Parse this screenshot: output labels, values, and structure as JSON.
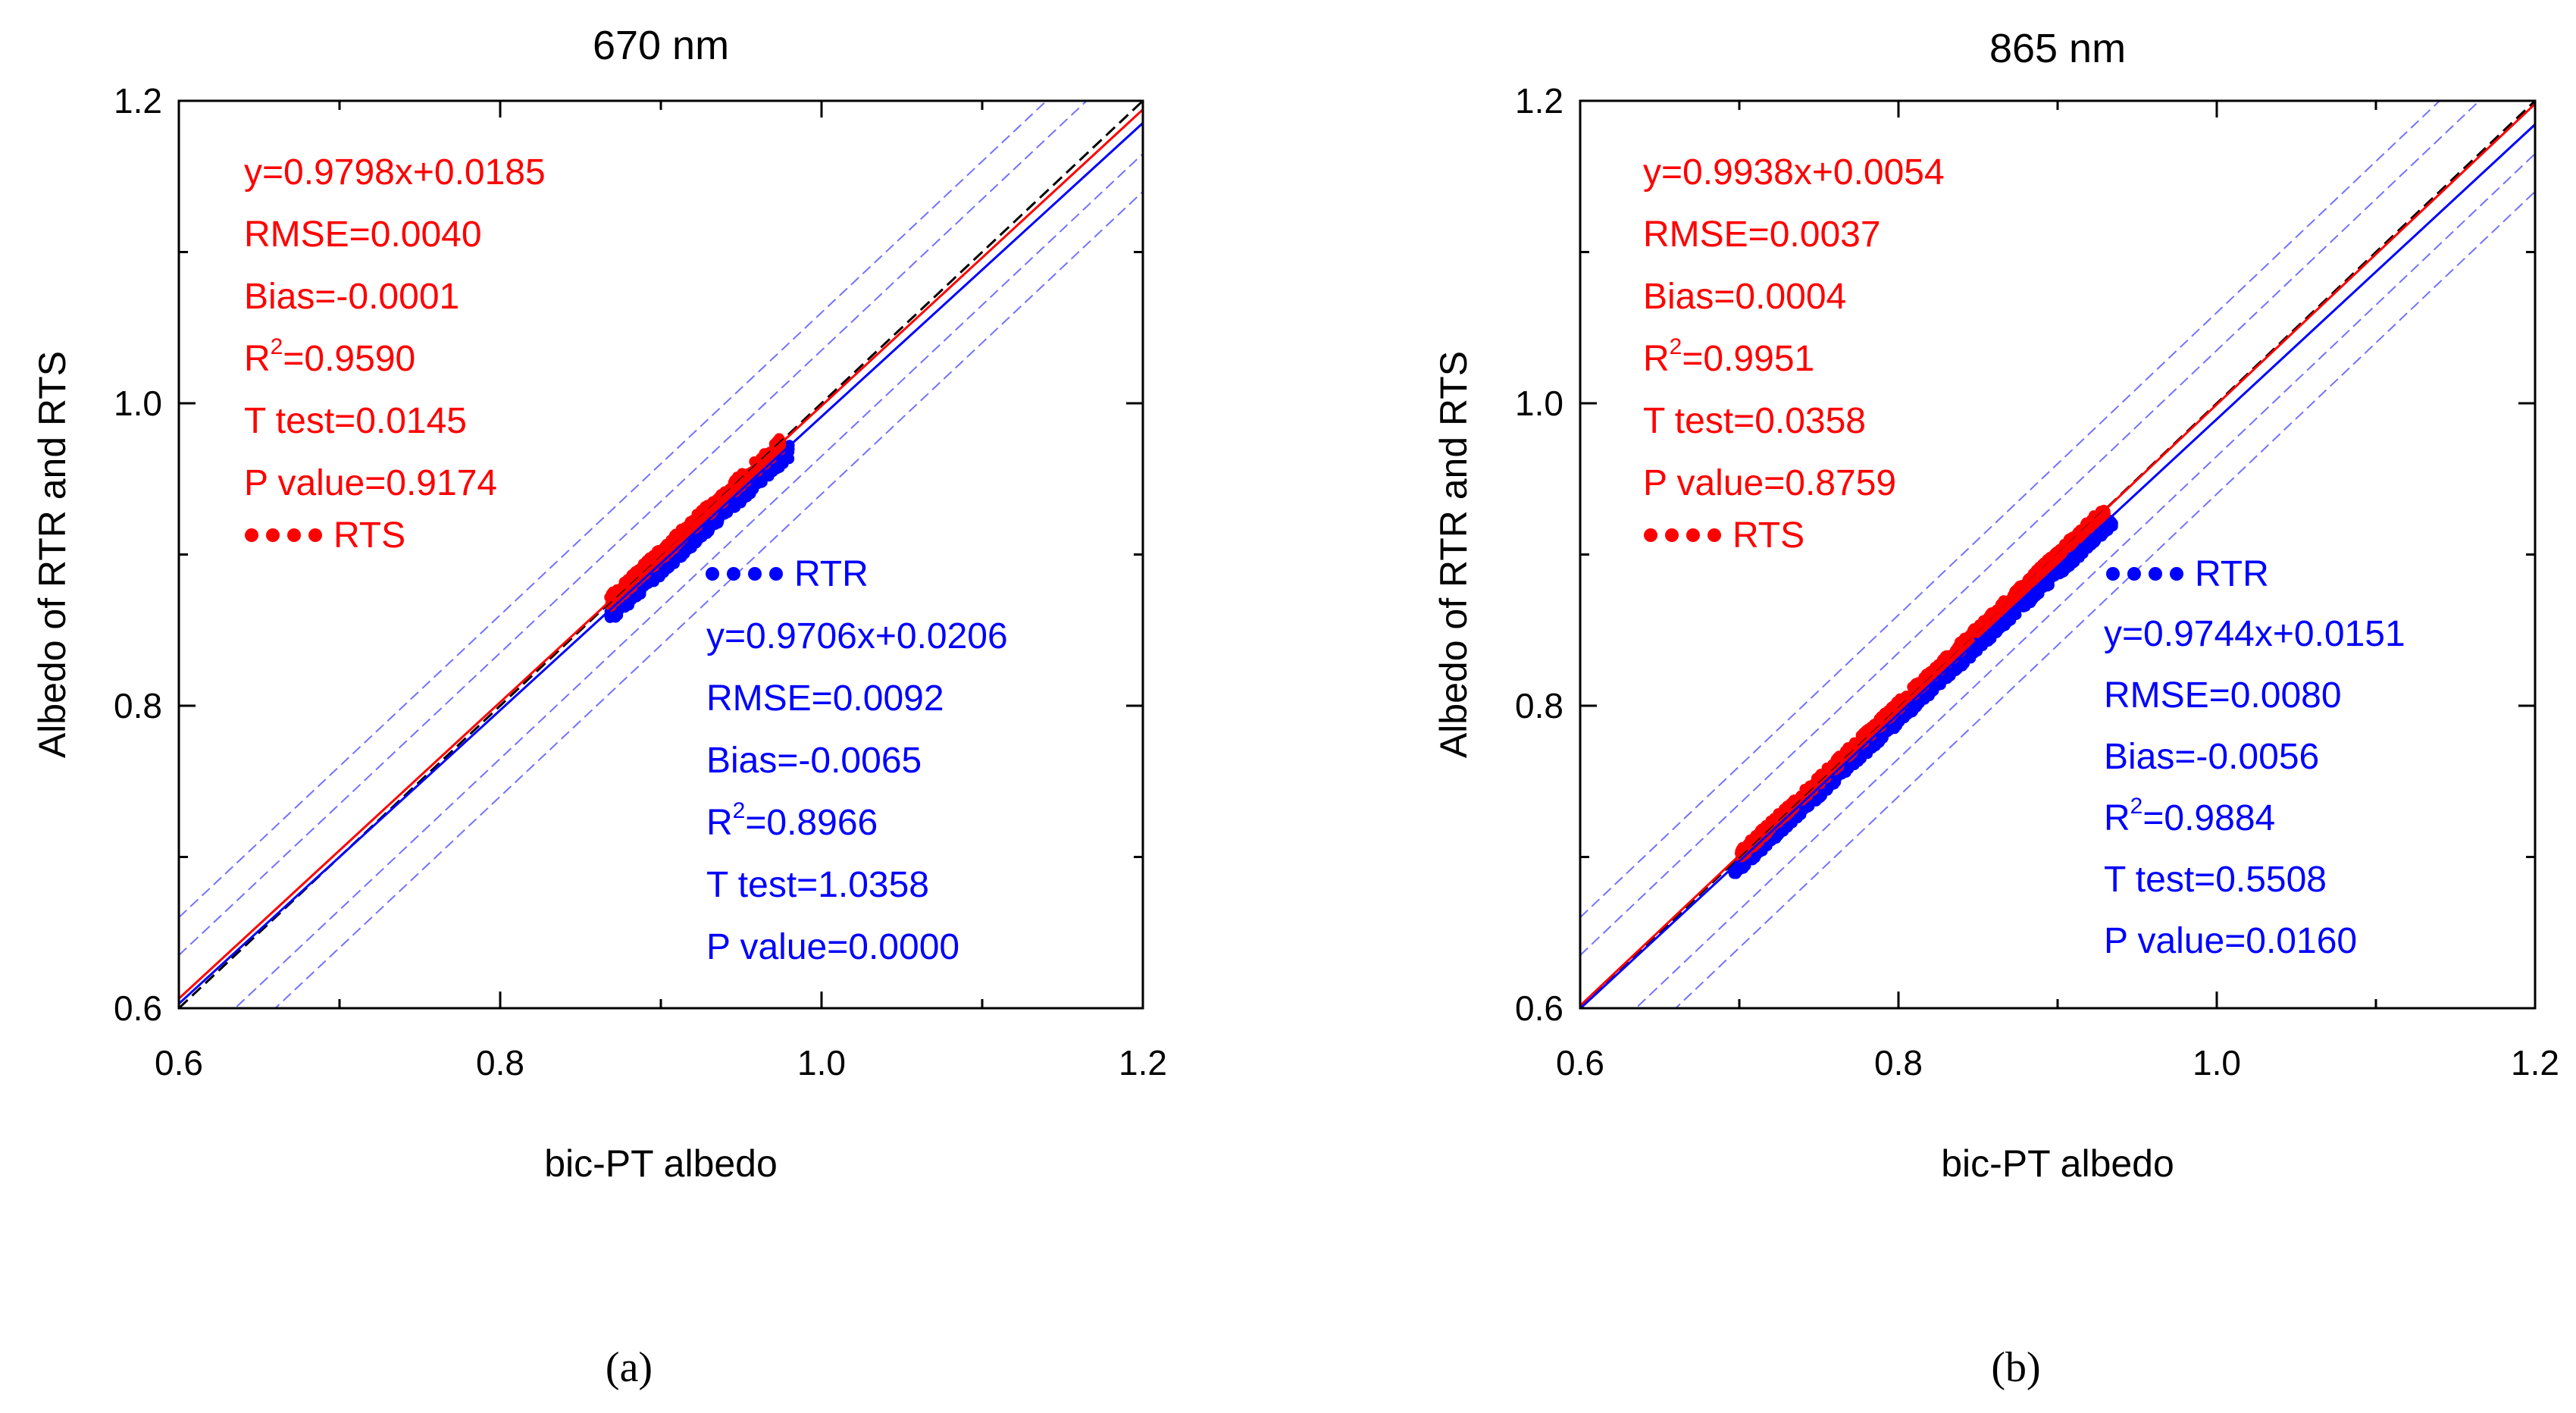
{
  "chart_data": [
    {
      "type": "scatter",
      "title": "670 nm",
      "xlabel": "bic-PT albedo",
      "ylabel": "Albedo of RTR and RTS",
      "xlim": [
        0.6,
        1.2
      ],
      "ylim": [
        0.6,
        1.2
      ],
      "xticks": [
        "0.6",
        "0.8",
        "1.0",
        "1.2"
      ],
      "yticks": [
        "0.6",
        "0.8",
        "1.0",
        "1.2"
      ],
      "caption": "(a)",
      "series": [
        {
          "name": "RTS",
          "color": "#ff0000",
          "x_range": [
            0.868,
            0.975
          ],
          "fit": {
            "slope": 0.9798,
            "intercept": 0.0185
          },
          "stats": [
            "y=0.9798x+0.0185",
            "RMSE=0.0040",
            "Bias=-0.0001",
            "=0.9590",
            "T test=0.0145",
            "P value=0.9174"
          ]
        },
        {
          "name": "RTR",
          "color": "#0000ff",
          "x_range": [
            0.868,
            0.98
          ],
          "fit": {
            "slope": 0.9706,
            "intercept": 0.0206
          },
          "stats": [
            "y=0.9706x+0.0206",
            "RMSE=0.0092",
            "Bias=-0.0065",
            "=0.8966",
            "T test=1.0358",
            "P value=0.0000"
          ]
        }
      ]
    },
    {
      "type": "scatter",
      "title": "865 nm",
      "xlabel": "bic-PT albedo",
      "ylabel": "Albedo of RTR and RTS",
      "xlim": [
        0.6,
        1.2
      ],
      "ylim": [
        0.6,
        1.2
      ],
      "xticks": [
        "0.6",
        "0.8",
        "1.0",
        "1.2"
      ],
      "yticks": [
        "0.6",
        "0.8",
        "1.0",
        "1.2"
      ],
      "caption": "(b)",
      "series": [
        {
          "name": "RTS",
          "color": "#ff0000",
          "x_range": [
            0.7,
            0.93
          ],
          "fit": {
            "slope": 0.9938,
            "intercept": 0.0054
          },
          "stats": [
            "y=0.9938x+0.0054",
            "RMSE=0.0037",
            "Bias=0.0004",
            "=0.9951",
            "T test=0.0358",
            "P value=0.8759"
          ]
        },
        {
          "name": "RTR",
          "color": "#0000ff",
          "x_range": [
            0.695,
            0.935
          ],
          "fit": {
            "slope": 0.9744,
            "intercept": 0.0151
          },
          "stats": [
            "y=0.9744x+0.0151",
            "RMSE=0.0080",
            "Bias=-0.0056",
            "=0.9884",
            "T test=0.5508",
            "P value=0.0160"
          ]
        }
      ]
    }
  ],
  "r2_prefix": "R",
  "r2_superscript": "2"
}
